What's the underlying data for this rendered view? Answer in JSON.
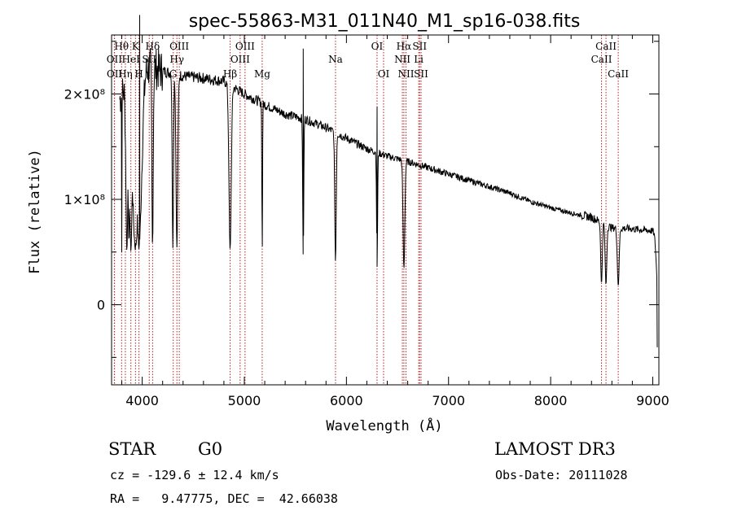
{
  "colors": {
    "spectrum": "#000000",
    "line_markers": "#b22222",
    "axes": "#000000"
  },
  "chart_data": {
    "type": "line",
    "title": "spec-55863-M31_011N40_M1_sp16-038.fits",
    "xlabel": "Wavelength (Å)",
    "ylabel": "Flux (relative)",
    "xlim": [
      3700,
      9060
    ],
    "ylim": [
      -76000000,
      256000000
    ],
    "xticks": [
      4000,
      5000,
      6000,
      7000,
      8000,
      9000
    ],
    "xtick_labels": [
      "4000",
      "5000",
      "6000",
      "7000",
      "8000",
      "9000"
    ],
    "yticks": [
      0,
      100000000,
      200000000
    ],
    "ytick_labels": [
      "0",
      "1×10⁸",
      "2×10⁸"
    ],
    "series": [
      {
        "name": "spectrum",
        "continuum": [
          [
            3780,
            195000000
          ],
          [
            3850,
            210000000
          ],
          [
            3950,
            222000000
          ],
          [
            4050,
            226000000
          ],
          [
            4200,
            222000000
          ],
          [
            4400,
            217000000
          ],
          [
            4600,
            215000000
          ],
          [
            4800,
            212000000
          ],
          [
            5000,
            200000000
          ],
          [
            5200,
            190000000
          ],
          [
            5400,
            181000000
          ],
          [
            5600,
            176000000
          ],
          [
            5800,
            168000000
          ],
          [
            6000,
            158000000
          ],
          [
            6200,
            148000000
          ],
          [
            6400,
            141000000
          ],
          [
            6600,
            136000000
          ],
          [
            6800,
            130000000
          ],
          [
            7000,
            124000000
          ],
          [
            7200,
            118000000
          ],
          [
            7400,
            112000000
          ],
          [
            7600,
            106000000
          ],
          [
            7800,
            98000000
          ],
          [
            8000,
            92000000
          ],
          [
            8200,
            87000000
          ],
          [
            8400,
            83000000
          ],
          [
            8600,
            73000000
          ],
          [
            8800,
            72000000
          ],
          [
            9000,
            70000000
          ],
          [
            9050,
            65000000
          ]
        ],
        "features": [
          [
            3800,
            4
          ],
          [
            3850,
            40
          ],
          [
            3870,
            30
          ],
          [
            3889,
            60
          ],
          [
            3934,
            130
          ],
          [
            3968,
            110
          ],
          [
            4101,
            25
          ],
          [
            4300,
            25
          ],
          [
            4340,
            35
          ],
          [
            4861,
            45
          ],
          [
            5175,
            12
          ],
          [
            5577,
            20
          ],
          [
            5893,
            28
          ],
          [
            6300,
            20
          ],
          [
            6563,
            35
          ],
          [
            8498,
            30
          ],
          [
            8542,
            32
          ],
          [
            8662,
            35
          ],
          [
            9050,
            60
          ]
        ],
        "spikes": [
          [
            3975,
            275000000
          ],
          [
            5577,
            243000000
          ],
          [
            6300,
            188000000
          ]
        ]
      }
    ],
    "line_markers": [
      {
        "label": "Hθ",
        "wavelength": 3798,
        "row": 1
      },
      {
        "label": "OII",
        "wavelength": 3727,
        "row": 2
      },
      {
        "label": "OII",
        "wavelength": 3729,
        "row": 3
      },
      {
        "label": "Hη",
        "wavelength": 3835,
        "row": 3
      },
      {
        "label": "HeI",
        "wavelength": 3889,
        "row": 2
      },
      {
        "label": "K",
        "wavelength": 3934,
        "row": 1
      },
      {
        "label": "H",
        "wavelength": 3968,
        "row": 3
      },
      {
        "label": "SII",
        "wavelength": 4069,
        "row": 2
      },
      {
        "label": "Hδ",
        "wavelength": 4102,
        "row": 1
      },
      {
        "label": "OIII",
        "wavelength": 4363,
        "row": 1
      },
      {
        "label": "Hγ",
        "wavelength": 4340,
        "row": 2
      },
      {
        "label": "G",
        "wavelength": 4304,
        "row": 3
      },
      {
        "label": "Hβ",
        "wavelength": 4861,
        "row": 3
      },
      {
        "label": "OIII",
        "wavelength": 5007,
        "row": 1
      },
      {
        "label": "OIII",
        "wavelength": 4959,
        "row": 2
      },
      {
        "label": "Mg",
        "wavelength": 5175,
        "row": 3
      },
      {
        "label": "Na",
        "wavelength": 5893,
        "row": 2
      },
      {
        "label": "OI",
        "wavelength": 6300,
        "row": 1
      },
      {
        "label": "OI",
        "wavelength": 6364,
        "row": 3
      },
      {
        "label": "Hα",
        "wavelength": 6563,
        "row": 1
      },
      {
        "label": "NII",
        "wavelength": 6548,
        "row": 2
      },
      {
        "label": "NII",
        "wavelength": 6583,
        "row": 3
      },
      {
        "label": "SII",
        "wavelength": 6717,
        "row": 1
      },
      {
        "label": "Li",
        "wavelength": 6708,
        "row": 2
      },
      {
        "label": "SII",
        "wavelength": 6731,
        "row": 3
      },
      {
        "label": "CaII",
        "wavelength": 8542,
        "row": 1
      },
      {
        "label": "CaII",
        "wavelength": 8498,
        "row": 2
      },
      {
        "label": "CaII",
        "wavelength": 8662,
        "row": 3
      }
    ]
  },
  "info": {
    "class": "STAR",
    "subclass": "G0",
    "survey": "LAMOST DR3",
    "cz": "cz = -129.6 ± 12.4 km/s",
    "obs_date": "Obs-Date: 20111028",
    "coords": "RA =   9.47775, DEC =  42.66038"
  }
}
